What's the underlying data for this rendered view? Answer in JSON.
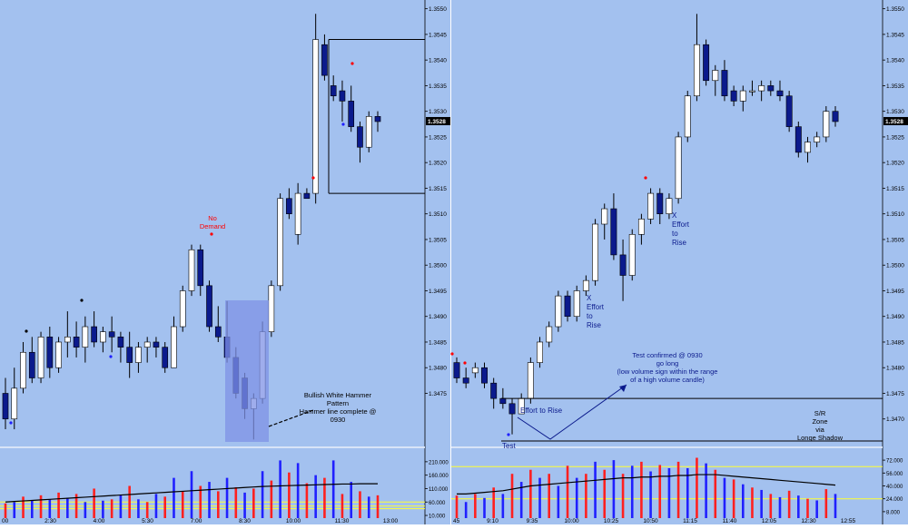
{
  "colors": {
    "background": "#a3c1ef",
    "separator": "#d8e4f7",
    "bull_body": "#ffffff",
    "bear_body": "#0b1a8c",
    "wick": "#000000",
    "volume_up": "#2020ff",
    "volume_down": "#ff2020",
    "volume_avg": "#000000",
    "level_line": "#000000",
    "annotation_text": "#0b1a8c",
    "annotation_red": "#ff0000",
    "highlight_box": "#7f92e6",
    "volume_threshold": "#ffff33"
  },
  "chart_data": [
    {
      "type": "candlestick",
      "name_hint": "left-panel",
      "y_axis_ticks": [
        "1.3475",
        "1.3480",
        "1.3485",
        "1.3490",
        "1.3495",
        "1.3500",
        "1.3505",
        "1.3510",
        "1.3515",
        "1.3520",
        "1.3525",
        "1.3530",
        "1.3535",
        "1.3540",
        "1.3545",
        "1.3550"
      ],
      "current_price_label": "1.3528",
      "ylim": [
        1.3465,
        1.3551
      ],
      "x_ticks": [
        "00",
        "2:30",
        "4:00",
        "5:30",
        "7:00",
        "8:30",
        "10:00",
        "11:30",
        "13:00"
      ],
      "candles": [
        [
          1.3475,
          1.3478,
          1.3468,
          1.347
        ],
        [
          1.347,
          1.348,
          1.3468,
          1.3476
        ],
        [
          1.3476,
          1.3485,
          1.3475,
          1.3483
        ],
        [
          1.3483,
          1.3486,
          1.3477,
          1.3478
        ],
        [
          1.3478,
          1.3487,
          1.3477,
          1.3486
        ],
        [
          1.3486,
          1.3488,
          1.3478,
          1.348
        ],
        [
          1.348,
          1.3486,
          1.3479,
          1.3485
        ],
        [
          1.3485,
          1.3491,
          1.3482,
          1.3486
        ],
        [
          1.3486,
          1.3489,
          1.3482,
          1.3484
        ],
        [
          1.3484,
          1.349,
          1.3481,
          1.3488
        ],
        [
          1.3488,
          1.3491,
          1.3484,
          1.3485
        ],
        [
          1.3485,
          1.3488,
          1.3483,
          1.3487
        ],
        [
          1.3487,
          1.349,
          1.3483,
          1.3486
        ],
        [
          1.3486,
          1.3487,
          1.3481,
          1.3484
        ],
        [
          1.3484,
          1.3487,
          1.3478,
          1.3481
        ],
        [
          1.3481,
          1.3485,
          1.3479,
          1.3484
        ],
        [
          1.3484,
          1.3486,
          1.3481,
          1.3485
        ],
        [
          1.3485,
          1.3486,
          1.3482,
          1.3484
        ],
        [
          1.3484,
          1.3485,
          1.3479,
          1.348
        ],
        [
          1.348,
          1.349,
          1.348,
          1.3488
        ],
        [
          1.3488,
          1.3496,
          1.3487,
          1.3495
        ],
        [
          1.3495,
          1.3504,
          1.3494,
          1.3503
        ],
        [
          1.3503,
          1.3504,
          1.3494,
          1.3496
        ],
        [
          1.3496,
          1.3497,
          1.3487,
          1.3488
        ],
        [
          1.3488,
          1.3492,
          1.3485,
          1.3486
        ],
        [
          1.3486,
          1.3493,
          1.3481,
          1.3482
        ],
        [
          1.3482,
          1.3484,
          1.3474,
          1.3475
        ],
        [
          1.3478,
          1.3479,
          1.347,
          1.3472
        ],
        [
          1.3472,
          1.3475,
          1.3466,
          1.3474
        ],
        [
          1.3474,
          1.3489,
          1.3473,
          1.3487
        ],
        [
          1.3487,
          1.3497,
          1.3486,
          1.3496
        ],
        [
          1.3496,
          1.3514,
          1.3495,
          1.3513
        ],
        [
          1.3513,
          1.3515,
          1.3509,
          1.351
        ],
        [
          1.3506,
          1.3516,
          1.3504,
          1.3514
        ],
        [
          1.3514,
          1.3515,
          1.3513,
          1.3513
        ],
        [
          1.3514,
          1.3549,
          1.3512,
          1.3544
        ],
        [
          1.3543,
          1.3545,
          1.3536,
          1.3537
        ],
        [
          1.3535,
          1.3537,
          1.3532,
          1.3533
        ],
        [
          1.3534,
          1.3536,
          1.3528,
          1.3532
        ],
        [
          1.3532,
          1.3535,
          1.3526,
          1.3527
        ],
        [
          1.3527,
          1.3528,
          1.352,
          1.3523
        ],
        [
          1.3523,
          1.353,
          1.3522,
          1.3529
        ],
        [
          1.3529,
          1.353,
          1.3526,
          1.3528
        ]
      ],
      "volume_y_ticks": [
        "210.000",
        "160.000",
        "110.000",
        "60.000",
        "10.000"
      ],
      "volume_ylim": [
        0,
        240
      ],
      "volume": [
        [
          55,
          "down"
        ],
        [
          60,
          "up"
        ],
        [
          80,
          "down"
        ],
        [
          65,
          "up"
        ],
        [
          85,
          "down"
        ],
        [
          70,
          "up"
        ],
        [
          95,
          "down"
        ],
        [
          75,
          "up"
        ],
        [
          90,
          "down"
        ],
        [
          60,
          "up"
        ],
        [
          110,
          "down"
        ],
        [
          65,
          "up"
        ],
        [
          70,
          "down"
        ],
        [
          85,
          "up"
        ],
        [
          120,
          "down"
        ],
        [
          70,
          "up"
        ],
        [
          60,
          "down"
        ],
        [
          90,
          "up"
        ],
        [
          80,
          "down"
        ],
        [
          150,
          "up"
        ],
        [
          100,
          "down"
        ],
        [
          175,
          "up"
        ],
        [
          120,
          "down"
        ],
        [
          135,
          "up"
        ],
        [
          100,
          "down"
        ],
        [
          150,
          "up"
        ],
        [
          115,
          "down"
        ],
        [
          95,
          "up"
        ],
        [
          110,
          "down"
        ],
        [
          175,
          "up"
        ],
        [
          140,
          "down"
        ],
        [
          215,
          "up"
        ],
        [
          170,
          "down"
        ],
        [
          205,
          "up"
        ],
        [
          130,
          "down"
        ],
        [
          160,
          "up"
        ],
        [
          150,
          "down"
        ],
        [
          215,
          "up"
        ],
        [
          90,
          "down"
        ],
        [
          135,
          "up"
        ],
        [
          100,
          "down"
        ],
        [
          80,
          "up"
        ],
        [
          85,
          "down"
        ]
      ],
      "volume_avg": [
        60,
        62,
        64,
        66,
        68,
        70,
        72,
        74,
        76,
        78,
        80,
        82,
        84,
        86,
        88,
        90,
        92,
        94,
        96,
        98,
        100,
        102,
        104,
        106,
        108,
        110,
        112,
        114,
        116,
        118,
        119,
        120,
        121,
        122,
        123,
        124,
        125,
        126,
        127,
        127,
        128,
        128,
        128
      ],
      "annotations": {
        "no_demand": "No\nDemand",
        "bullish_hammer": "Bullish White Hammer\nPattern\nHammer line complete @\n0930"
      }
    },
    {
      "type": "candlestick",
      "name_hint": "right-panel",
      "y_axis_ticks": [
        "1.3470",
        "1.3475",
        "1.3480",
        "1.3485",
        "1.3490",
        "1.3495",
        "1.3500",
        "1.3505",
        "1.3510",
        "1.3515",
        "1.3520",
        "1.3525",
        "1.3530",
        "1.3535",
        "1.3540",
        "1.3545",
        "1.3550"
      ],
      "current_price_label": "1.3528",
      "ylim": [
        1.3465,
        1.3551
      ],
      "x_ticks": [
        "45",
        "9:10",
        "9:35",
        "10:00",
        "10:25",
        "10:50",
        "11:15",
        "11:40",
        "12:05",
        "12:30",
        "12:55"
      ],
      "candles": [
        [
          1.3481,
          1.3482,
          1.3477,
          1.3478
        ],
        [
          1.3478,
          1.348,
          1.3476,
          1.3477
        ],
        [
          1.3479,
          1.3481,
          1.3478,
          1.348
        ],
        [
          1.348,
          1.3481,
          1.3476,
          1.3477
        ],
        [
          1.3477,
          1.3478,
          1.3472,
          1.3474
        ],
        [
          1.3474,
          1.3476,
          1.3472,
          1.3473
        ],
        [
          1.3473,
          1.3474,
          1.3467,
          1.3471
        ],
        [
          1.3471,
          1.3475,
          1.3471,
          1.3474
        ],
        [
          1.3474,
          1.3482,
          1.3473,
          1.3481
        ],
        [
          1.3481,
          1.3486,
          1.348,
          1.3485
        ],
        [
          1.3485,
          1.3489,
          1.3484,
          1.3488
        ],
        [
          1.3488,
          1.3495,
          1.3487,
          1.3494
        ],
        [
          1.3494,
          1.3495,
          1.3489,
          1.349
        ],
        [
          1.349,
          1.3496,
          1.3489,
          1.3495
        ],
        [
          1.3495,
          1.3498,
          1.3494,
          1.3497
        ],
        [
          1.3497,
          1.3509,
          1.3496,
          1.3508
        ],
        [
          1.3508,
          1.3512,
          1.3505,
          1.3511
        ],
        [
          1.3511,
          1.3514,
          1.3501,
          1.3502
        ],
        [
          1.3502,
          1.3505,
          1.3493,
          1.3498
        ],
        [
          1.3498,
          1.3507,
          1.3497,
          1.3506
        ],
        [
          1.3506,
          1.351,
          1.3504,
          1.3509
        ],
        [
          1.3509,
          1.3515,
          1.3508,
          1.3514
        ],
        [
          1.3514,
          1.3515,
          1.3508,
          1.351
        ],
        [
          1.351,
          1.3514,
          1.3509,
          1.3513
        ],
        [
          1.3513,
          1.3526,
          1.3512,
          1.3525
        ],
        [
          1.3525,
          1.3534,
          1.3524,
          1.3533
        ],
        [
          1.3533,
          1.3549,
          1.3532,
          1.3543
        ],
        [
          1.3543,
          1.3544,
          1.3535,
          1.3536
        ],
        [
          1.3536,
          1.3539,
          1.3533,
          1.3538
        ],
        [
          1.3538,
          1.354,
          1.3532,
          1.3533
        ],
        [
          1.3534,
          1.3535,
          1.3531,
          1.3532
        ],
        [
          1.3532,
          1.3535,
          1.353,
          1.3534
        ],
        [
          1.3534,
          1.3536,
          1.3533,
          1.3534
        ],
        [
          1.3534,
          1.3536,
          1.3532,
          1.3535
        ],
        [
          1.3535,
          1.3536,
          1.3533,
          1.3534
        ],
        [
          1.3534,
          1.3536,
          1.3532,
          1.3533
        ],
        [
          1.3533,
          1.3534,
          1.3526,
          1.3527
        ],
        [
          1.3527,
          1.3528,
          1.3521,
          1.3522
        ],
        [
          1.3522,
          1.3525,
          1.352,
          1.3524
        ],
        [
          1.3524,
          1.3526,
          1.3523,
          1.3525
        ],
        [
          1.3525,
          1.3531,
          1.3524,
          1.353
        ],
        [
          1.353,
          1.3531,
          1.3527,
          1.3528
        ]
      ],
      "volume_y_ticks": [
        "72.000",
        "56.000",
        "40.000",
        "24.000",
        "8.000"
      ],
      "volume_ylim": [
        0,
        80
      ],
      "volume": [
        [
          28,
          "down"
        ],
        [
          20,
          "up"
        ],
        [
          30,
          "down"
        ],
        [
          25,
          "up"
        ],
        [
          38,
          "down"
        ],
        [
          30,
          "up"
        ],
        [
          55,
          "down"
        ],
        [
          45,
          "up"
        ],
        [
          60,
          "down"
        ],
        [
          50,
          "up"
        ],
        [
          55,
          "down"
        ],
        [
          40,
          "up"
        ],
        [
          65,
          "down"
        ],
        [
          50,
          "up"
        ],
        [
          55,
          "down"
        ],
        [
          70,
          "up"
        ],
        [
          60,
          "down"
        ],
        [
          72,
          "up"
        ],
        [
          55,
          "down"
        ],
        [
          65,
          "up"
        ],
        [
          70,
          "down"
        ],
        [
          58,
          "up"
        ],
        [
          66,
          "down"
        ],
        [
          62,
          "up"
        ],
        [
          70,
          "down"
        ],
        [
          62,
          "up"
        ],
        [
          75,
          "down"
        ],
        [
          68,
          "up"
        ],
        [
          60,
          "down"
        ],
        [
          50,
          "up"
        ],
        [
          48,
          "down"
        ],
        [
          42,
          "up"
        ],
        [
          38,
          "down"
        ],
        [
          35,
          "up"
        ],
        [
          30,
          "down"
        ],
        [
          26,
          "up"
        ],
        [
          34,
          "down"
        ],
        [
          28,
          "up"
        ],
        [
          24,
          "down"
        ],
        [
          22,
          "up"
        ],
        [
          36,
          "down"
        ],
        [
          30,
          "up"
        ]
      ],
      "volume_avg": [
        30,
        30,
        31,
        32,
        33,
        34,
        36,
        38,
        40,
        41,
        42,
        43,
        44,
        45,
        46,
        47,
        48,
        49,
        50,
        50,
        51,
        51,
        52,
        52,
        53,
        53,
        54,
        54,
        54,
        53,
        52,
        51,
        50,
        49,
        48,
        47,
        46,
        45,
        44,
        43,
        42,
        41
      ],
      "annotations": {
        "test": "Test",
        "effort_to_rise_low": "Effort to Rise",
        "effort_to_rise_mid": "X\nEffort\nto\nRise",
        "effort_to_rise_top": "X\nEffort\nto\nRise",
        "test_confirmed": "Test confirmed @ 0930\ngo long\n(low volume sign within the range\nof a high volume candle)",
        "sr_zone": "S/R\nZone\nvia\nLonge Shadow"
      }
    }
  ]
}
